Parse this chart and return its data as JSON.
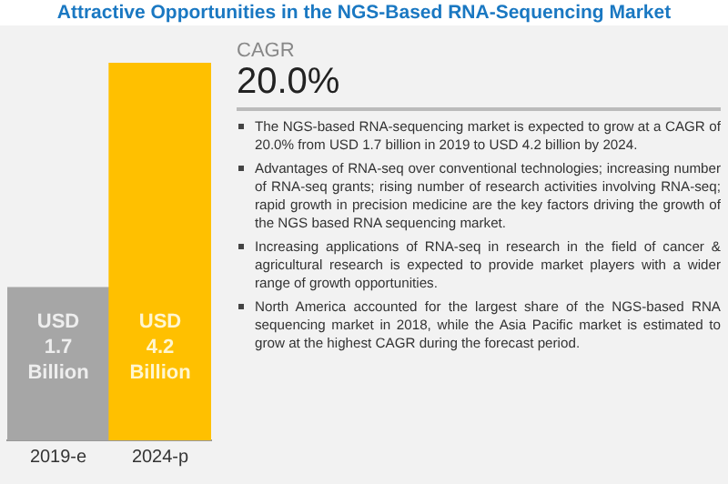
{
  "chart_data": {
    "type": "bar",
    "title": "Attractive Opportunities in the NGS-Based RNA-Sequencing Market",
    "categories": [
      "2019-e",
      "2024-p"
    ],
    "values": [
      1.7,
      4.2
    ],
    "colors": [
      "#a6a6a6",
      "#ffc000"
    ],
    "value_labels": [
      "USD 1.7 Billion",
      "USD 4.2 Billion"
    ],
    "legend": false,
    "grid": false,
    "annotations": [
      "CAGR",
      "20.0%",
      "The NGS-based RNA-sequencing market is expected to grow at a CAGR of 20.0% from USD 1.7 billion in 2019 to USD 4.2 billion by 2024.",
      "Advantages of RNA-seq over conventional technologies; increasing number of RNA-seq grants; rising number of research activities involving RNA-seq; rapid growth in precision medicine are the key factors driving the growth of the NGS based RNA sequencing market.",
      "Increasing applications of RNA-seq in research in the field of cancer & agricultural research is expected to provide market players with a wider range of growth opportunities.",
      "North America accounted for the largest share of the NGS-based RNA sequencing market in 2018, while the Asia Pacific market is estimated to grow at the highest CAGR during the forecast period."
    ]
  }
}
